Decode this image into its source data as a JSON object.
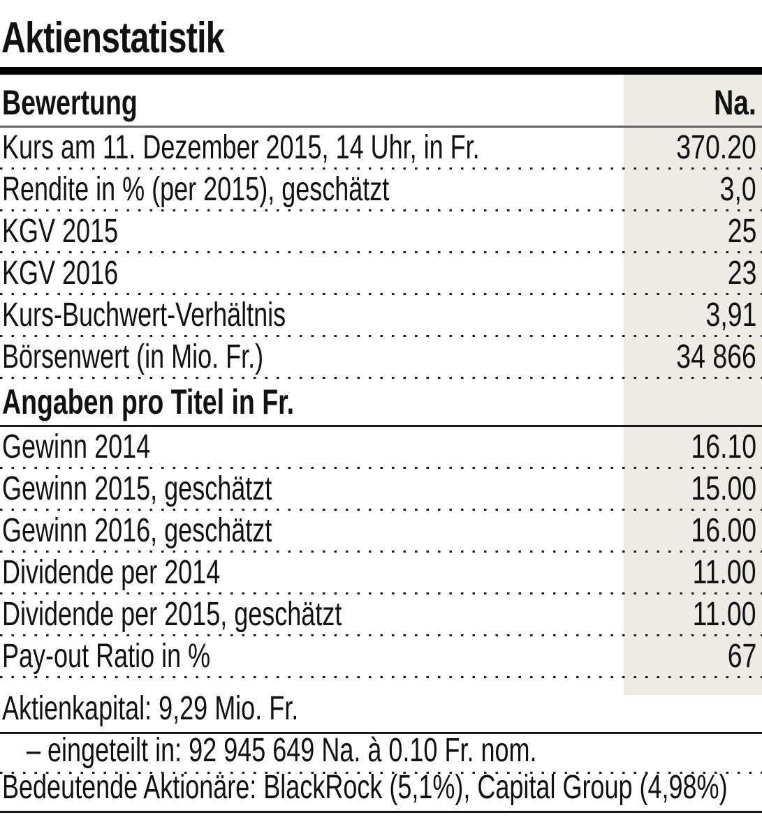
{
  "title": "Aktienstatistik",
  "table": {
    "sections": [
      {
        "header": "Bewertung",
        "header_value": "Na.",
        "rows": [
          {
            "label": "Kurs am 11. Dezember 2015, 14 Uhr, in Fr.",
            "value": "370.20"
          },
          {
            "label": "Rendite in % (per 2015), geschätzt",
            "value": "3,0"
          },
          {
            "label": "KGV 2015",
            "value": "25"
          },
          {
            "label": "KGV 2016",
            "value": "23"
          },
          {
            "label": "Kurs-Buchwert-Verhältnis",
            "value": "3,91"
          },
          {
            "label": "Börsenwert (in Mio. Fr.)",
            "value": "34 866"
          }
        ]
      },
      {
        "header": "Angaben pro Titel in Fr.",
        "header_value": "",
        "rows": [
          {
            "label": "Gewinn 2014",
            "value": "16.10"
          },
          {
            "label": "Gewinn 2015, geschätzt",
            "value": "15.00"
          },
          {
            "label": "Gewinn 2016, geschätzt",
            "value": "16.00"
          },
          {
            "label": "Dividende per 2014",
            "value": "11.00"
          },
          {
            "label": "Dividende per 2015, geschätzt",
            "value": "11.00"
          },
          {
            "label": "Pay-out Ratio in %",
            "value": "67"
          }
        ]
      }
    ]
  },
  "footer": {
    "lines": [
      "Aktienkapital: 9,29 Mio. Fr.",
      "– eingeteilt in: 92 945 649 Na. à 0.10 Fr. nom.",
      "Bedeutende Aktionäre: BlackRock (5,1%), Capital Group (4,98%)"
    ]
  },
  "colors": {
    "text": "#111111",
    "shade": "#ecebe5",
    "rule-gray": "#646464",
    "rule-dark": "#1a1a1a",
    "dot": "#1c1c1c"
  }
}
